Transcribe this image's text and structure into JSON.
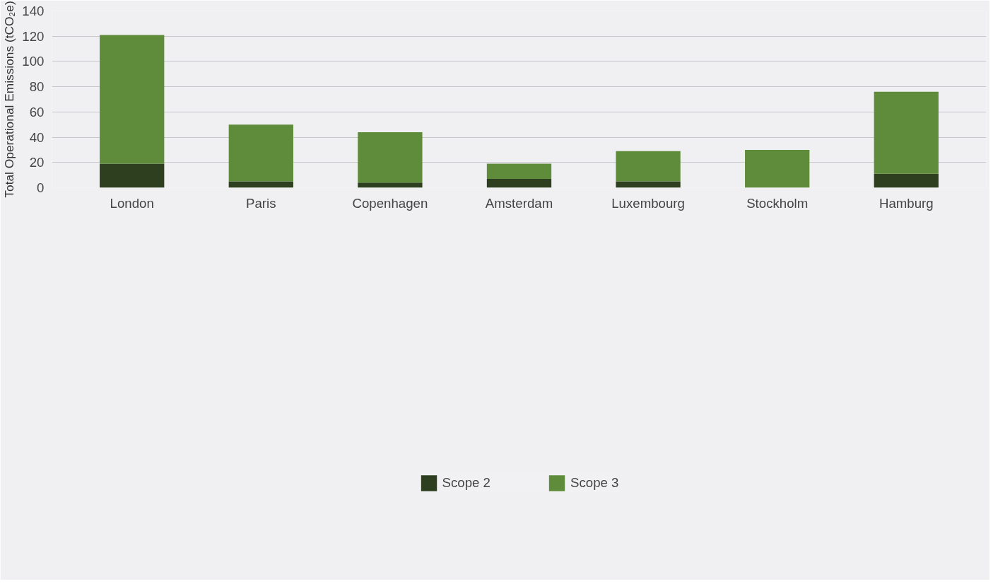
{
  "chart_data": {
    "type": "bar",
    "stacked": true,
    "ylabel": "Total Operational Emissions (tCO₂e)",
    "categories": [
      "London",
      "Paris",
      "Copenhagen",
      "Amsterdam",
      "Luxembourg",
      "Stockholm",
      "Hamburg"
    ],
    "series": [
      {
        "name": "Scope 2",
        "color": "#2e3f20",
        "values": [
          19,
          5,
          4,
          7,
          5,
          0,
          11
        ]
      },
      {
        "name": "Scope 3",
        "color": "#5f8c3a",
        "values": [
          102,
          45,
          40,
          12,
          24,
          30,
          65
        ]
      }
    ],
    "ylim": [
      0,
      140
    ],
    "yticks": [
      0,
      20,
      40,
      60,
      80,
      100,
      120,
      140
    ],
    "grid": "y",
    "legend": "bottom"
  }
}
